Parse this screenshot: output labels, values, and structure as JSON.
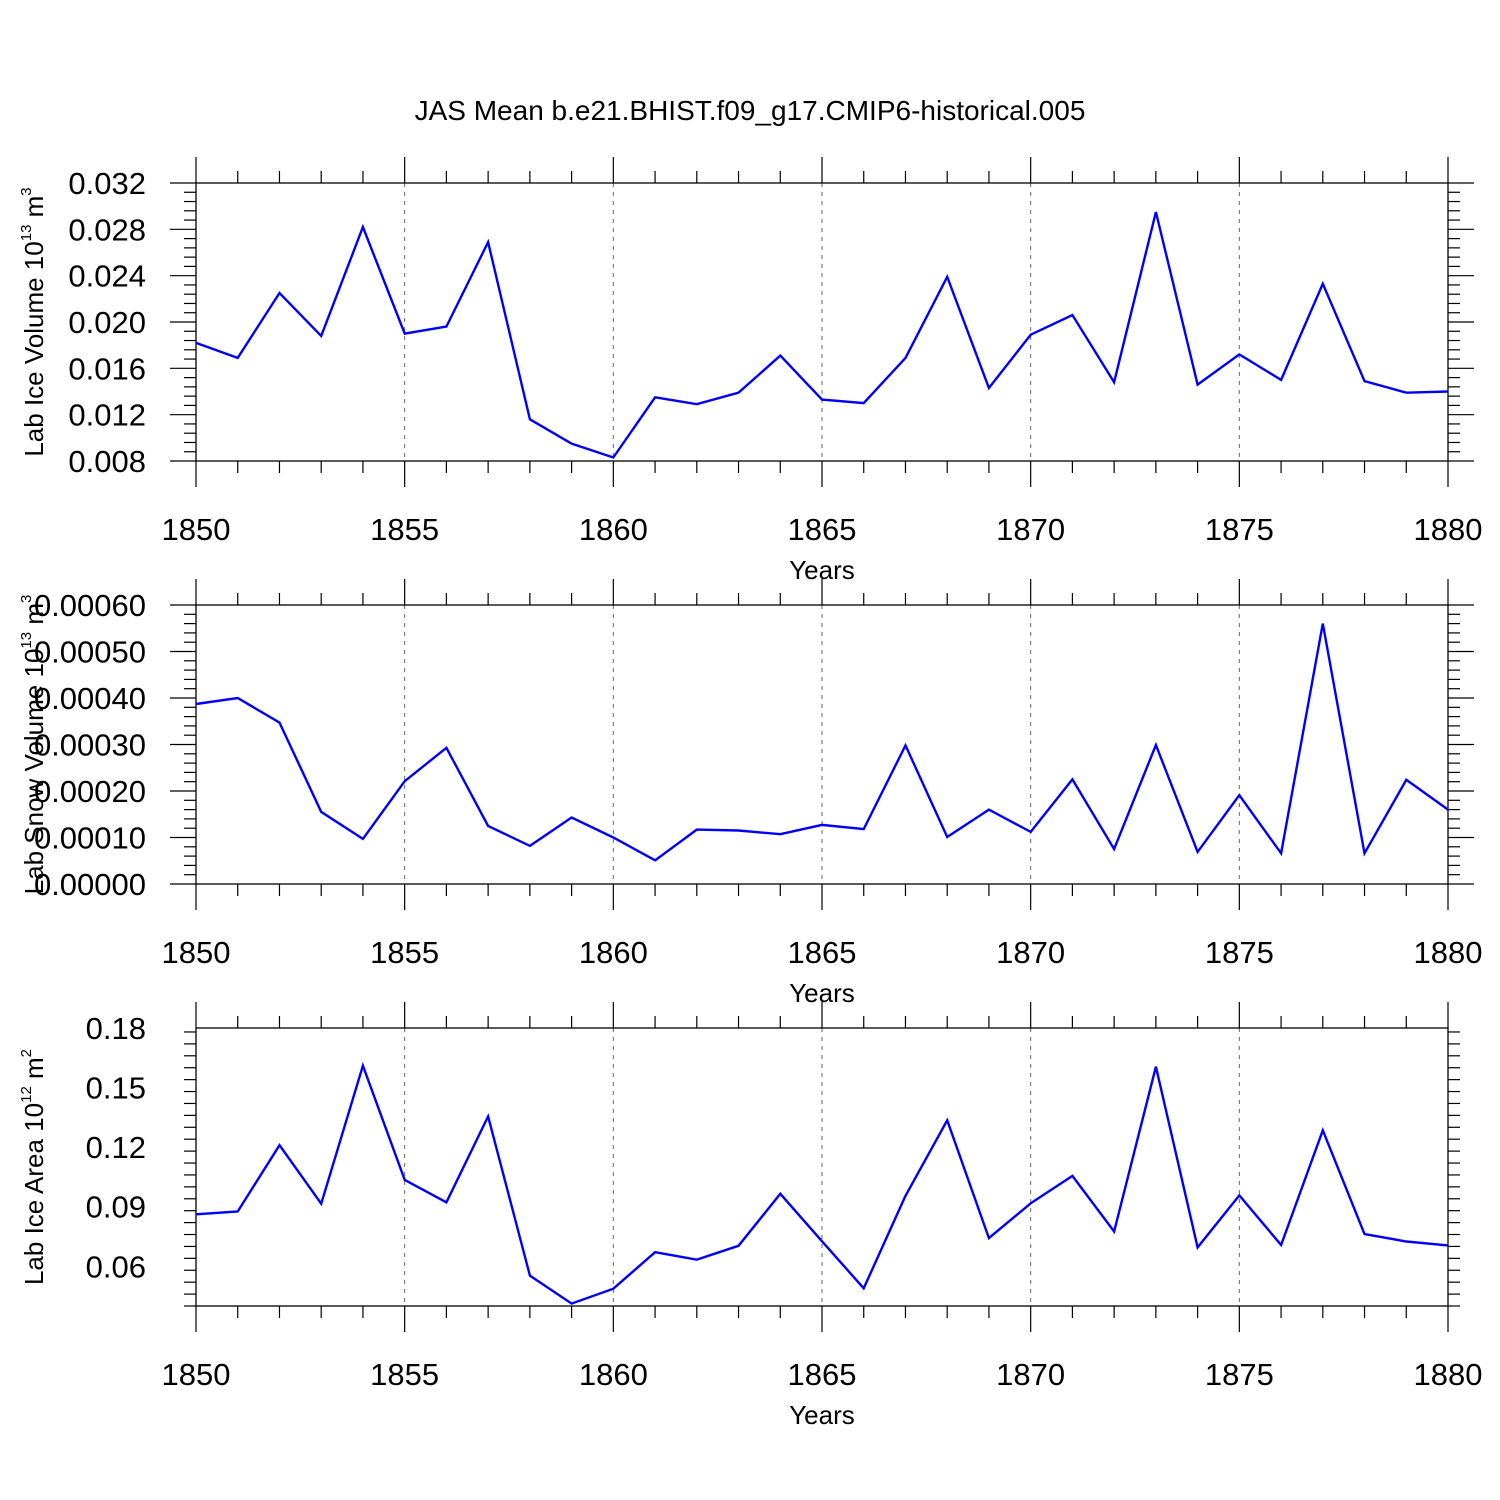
{
  "title": "JAS Mean b.e21.BHIST.f09_g17.CMIP6-historical.005",
  "chart_data": [
    {
      "type": "line",
      "ylabel": "Lab Ice Volume 10",
      "ylabel_exp": "13",
      "ylabel_unit": " m",
      "ylabel_unit_exp": "3",
      "xlabel": "Years",
      "xlim": [
        1850,
        1880
      ],
      "ylim": [
        0.008,
        0.032
      ],
      "yticks": [
        "0.008",
        "0.012",
        "0.016",
        "0.020",
        "0.024",
        "0.028",
        "0.032"
      ],
      "xticks": [
        "1850",
        "1855",
        "1860",
        "1865",
        "1870",
        "1875",
        "1880"
      ],
      "grid": "x-dashed",
      "color": "#0000ff",
      "x": [
        1850,
        1851,
        1852,
        1853,
        1854,
        1855,
        1856,
        1857,
        1858,
        1859,
        1860,
        1861,
        1862,
        1863,
        1864,
        1865,
        1866,
        1867,
        1868,
        1869,
        1870,
        1871,
        1872,
        1873,
        1874,
        1875,
        1876,
        1877,
        1878,
        1879,
        1880
      ],
      "values": [
        0.0182,
        0.0169,
        0.0225,
        0.0188,
        0.0282,
        0.019,
        0.0196,
        0.0269,
        0.0116,
        0.0095,
        0.0083,
        0.0135,
        0.0129,
        0.0139,
        0.0171,
        0.0133,
        0.013,
        0.0169,
        0.0239,
        0.0143,
        0.0189,
        0.0206,
        0.0148,
        0.0295,
        0.0146,
        0.0172,
        0.015,
        0.0233,
        0.0149,
        0.0139,
        0.014
      ]
    },
    {
      "type": "line",
      "ylabel": "Lab Snow Volume 10",
      "ylabel_exp": "13",
      "ylabel_unit": " m",
      "ylabel_unit_exp": "3",
      "xlabel": "Years",
      "xlim": [
        1850,
        1880
      ],
      "ylim": [
        0,
        0.0006
      ],
      "yticks": [
        "0.00000",
        "0.00010",
        "0.00020",
        "0.00030",
        "0.00040",
        "0.00050",
        "0.00060"
      ],
      "xticks": [
        "1850",
        "1855",
        "1860",
        "1865",
        "1870",
        "1875",
        "1880"
      ],
      "grid": "x-dashed",
      "color": "#0000ff",
      "x": [
        1850,
        1851,
        1852,
        1853,
        1854,
        1855,
        1856,
        1857,
        1858,
        1859,
        1860,
        1861,
        1862,
        1863,
        1864,
        1865,
        1866,
        1867,
        1868,
        1869,
        1870,
        1871,
        1872,
        1873,
        1874,
        1875,
        1876,
        1877,
        1878,
        1879,
        1880
      ],
      "values": [
        0.000387,
        0.0004,
        0.000347,
        0.000155,
        9.7e-05,
        0.000221,
        0.000293,
        0.000125,
        8.2e-05,
        0.000143,
        0.0001,
        5.1e-05,
        0.000117,
        0.000115,
        0.000107,
        0.000127,
        0.000118,
        0.000298,
        0.000101,
        0.00016,
        0.000112,
        0.000225,
        7.5e-05,
        0.000299,
        6.9e-05,
        0.000191,
        6.6e-05,
        0.00056,
        6.6e-05,
        0.000224,
        0.00016
      ]
    },
    {
      "type": "line",
      "ylabel": "Lab Ice Area 10",
      "ylabel_exp": "12",
      "ylabel_unit": " m",
      "ylabel_unit_exp": "2",
      "xlabel": "Years",
      "xlim": [
        1850,
        1880
      ],
      "ylim": [
        0.04,
        0.18
      ],
      "yticks": [
        "0.06",
        "0.09",
        "0.12",
        "0.15",
        "0.18"
      ],
      "xticks": [
        "1850",
        "1855",
        "1860",
        "1865",
        "1870",
        "1875",
        "1880"
      ],
      "grid": "x-dashed",
      "color": "#0000ff",
      "x": [
        1850,
        1851,
        1852,
        1853,
        1854,
        1855,
        1856,
        1857,
        1858,
        1859,
        1860,
        1861,
        1862,
        1863,
        1864,
        1865,
        1866,
        1867,
        1868,
        1869,
        1870,
        1871,
        1872,
        1873,
        1874,
        1875,
        1876,
        1877,
        1878,
        1879,
        1880
      ],
      "values": [
        0.0862,
        0.0876,
        0.121,
        0.0915,
        0.161,
        0.1035,
        0.0922,
        0.1355,
        0.0553,
        0.0412,
        0.0487,
        0.0671,
        0.0633,
        0.0703,
        0.0965,
        0.0726,
        0.0489,
        0.0955,
        0.1335,
        0.0742,
        0.0917,
        0.1055,
        0.0775,
        0.1605,
        0.0695,
        0.0957,
        0.0707,
        0.1285,
        0.0762,
        0.0725,
        0.0705
      ]
    }
  ]
}
